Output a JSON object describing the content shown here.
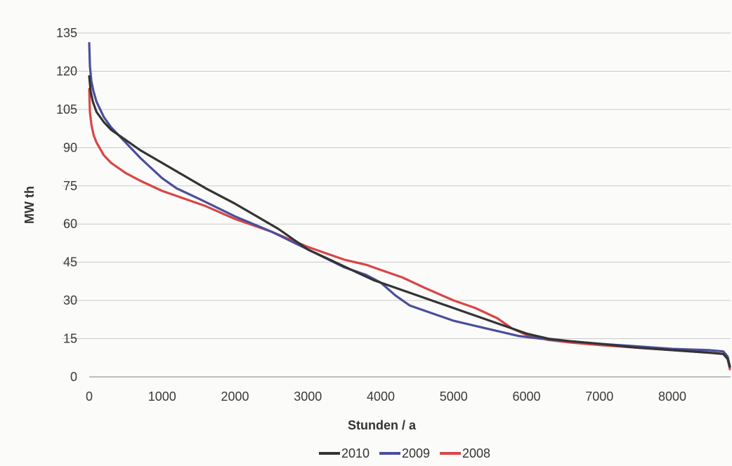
{
  "chart_data": {
    "type": "line",
    "title": "",
    "xlabel": "Stunden / a",
    "ylabel": "MW th",
    "xlim": [
      0,
      8800
    ],
    "ylim": [
      0,
      135
    ],
    "x_ticks": [
      0,
      1000,
      2000,
      3000,
      4000,
      5000,
      6000,
      7000,
      8000
    ],
    "x_tick_labels": [
      "0",
      "1000",
      "2000",
      "3000",
      "4000",
      "5000",
      "6000",
      "7000",
      "8000"
    ],
    "y_ticks": [
      0,
      15,
      30,
      45,
      60,
      75,
      90,
      105,
      120,
      135
    ],
    "y_tick_labels": [
      "0",
      "15",
      "30",
      "45",
      "60",
      "75",
      "90",
      "105",
      "120",
      "135"
    ],
    "grid": "horizontal",
    "legend_position": "bottom",
    "series": [
      {
        "name": "2010",
        "color": "#333333",
        "x": [
          0,
          20,
          50,
          100,
          200,
          300,
          500,
          700,
          1000,
          1300,
          1600,
          2000,
          2300,
          2600,
          2800,
          3000,
          3300,
          3600,
          3900,
          4200,
          4500,
          4800,
          5100,
          5400,
          5700,
          6000,
          6300,
          6600,
          7000,
          7500,
          8000,
          8500,
          8700,
          8760,
          8790
        ],
        "y": [
          118,
          112,
          108,
          104,
          100,
          97,
          93,
          89,
          84,
          79,
          74,
          68,
          63,
          58,
          54,
          50,
          46,
          42,
          38,
          35,
          32,
          29,
          26,
          23,
          20,
          17,
          15,
          14,
          13,
          11.5,
          10.5,
          9.5,
          9,
          7,
          4
        ]
      },
      {
        "name": "2009",
        "color": "#4a4f9a",
        "x": [
          0,
          10,
          30,
          60,
          100,
          200,
          300,
          500,
          700,
          1000,
          1200,
          1500,
          2000,
          2500,
          3000,
          3500,
          3800,
          4000,
          4200,
          4400,
          4700,
          5000,
          5300,
          5600,
          5900,
          6200,
          6600,
          7000,
          7500,
          8000,
          8500,
          8700,
          8760,
          8790
        ],
        "y": [
          131,
          122,
          116,
          112,
          108,
          102,
          98,
          92,
          86,
          78,
          74,
          70,
          63,
          57,
          50,
          43,
          40,
          37,
          32,
          28,
          25,
          22,
          20,
          18,
          16,
          15,
          14,
          13,
          12,
          11,
          10.5,
          10,
          8,
          4
        ]
      },
      {
        "name": "2008",
        "color": "#d94545",
        "x": [
          0,
          10,
          30,
          60,
          100,
          200,
          300,
          500,
          700,
          1000,
          1300,
          1600,
          2000,
          2500,
          3000,
          3500,
          3800,
          4000,
          4300,
          4600,
          5000,
          5300,
          5600,
          5800,
          6000,
          6300,
          6600,
          7000,
          7500,
          8000,
          8500,
          8700,
          8760,
          8790
        ],
        "y": [
          113,
          104,
          99,
          95,
          92,
          87,
          84,
          80,
          77,
          73,
          70,
          67,
          62,
          57,
          51,
          46,
          44,
          42,
          39,
          35,
          30,
          27,
          23,
          19,
          16.5,
          14.5,
          13.5,
          12.5,
          11.5,
          10.5,
          9.5,
          9,
          7,
          3
        ]
      }
    ]
  }
}
